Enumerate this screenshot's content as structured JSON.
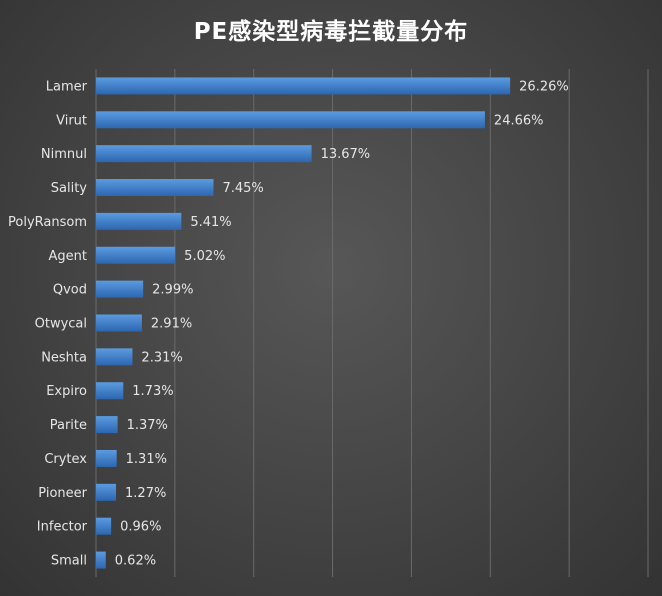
{
  "chart_data": {
    "type": "bar",
    "orientation": "horizontal",
    "title": "PE感染型病毒拦截量分布",
    "xlabel": "",
    "ylabel": "",
    "categories": [
      "Lamer",
      "Virut",
      "Nimnul",
      "Sality",
      "PolyRansom",
      "Agent",
      "Qvod",
      "Otwycal",
      "Neshta",
      "Expiro",
      "Parite",
      "Crytex",
      "Pioneer",
      "Infector",
      "Small"
    ],
    "values": [
      26.26,
      24.66,
      13.67,
      7.45,
      5.41,
      5.02,
      2.99,
      2.91,
      2.31,
      1.73,
      1.37,
      1.31,
      1.27,
      0.96,
      0.62
    ],
    "data_labels": [
      "26.26%",
      "24.66%",
      "13.67%",
      "7.45%",
      "5.41%",
      "5.02%",
      "2.99%",
      "2.91%",
      "2.31%",
      "1.73%",
      "1.37%",
      "1.31%",
      "1.27%",
      "0.96%",
      "0.62%"
    ],
    "xlim": [
      0,
      35
    ],
    "grid": true,
    "legend": "none",
    "colors": {
      "bar_top": "#5b9be0",
      "bar_bottom": "#2c66b0",
      "label": "#e6e6e6",
      "grid": "#6a6a6a",
      "title": "#ffffff"
    }
  }
}
